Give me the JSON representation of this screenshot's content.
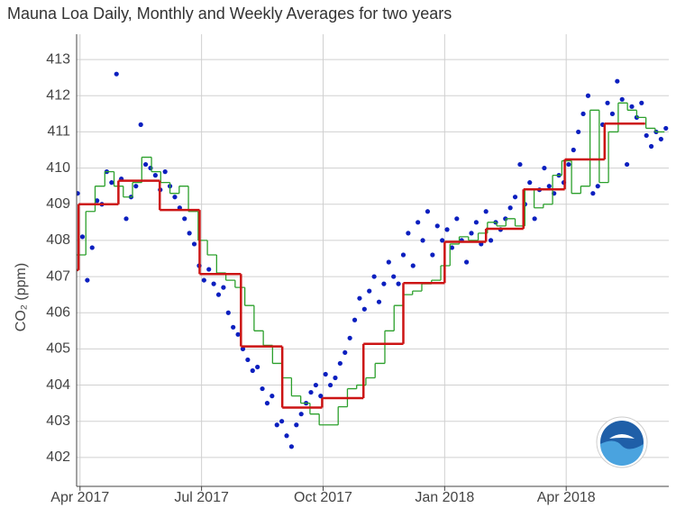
{
  "chart_data": {
    "type": "line",
    "title": "Mauna Loa Daily, Monthly and Weekly Averages for two years",
    "y_label": "CO₂ (ppm)",
    "xlim": [
      2017.243,
      2018.461
    ],
    "xticks": [
      {
        "value": 2017.25,
        "label": "Apr 2017"
      },
      {
        "value": 2017.5,
        "label": "Jul 2017"
      },
      {
        "value": 2017.75,
        "label": "Oct 2017"
      },
      {
        "value": 2018.0,
        "label": "Jan 2018"
      },
      {
        "value": 2018.25,
        "label": "Apr 2018"
      }
    ],
    "ylim": [
      401.2,
      413.7
    ],
    "yticks": [
      402,
      403,
      404,
      405,
      406,
      407,
      408,
      409,
      410,
      411,
      412,
      413
    ],
    "grid": true,
    "series": [
      {
        "type": "scatter",
        "color": "#0b1fbf",
        "x": [
          2017.245,
          2017.255,
          2017.265,
          2017.275,
          2017.285,
          2017.295,
          2017.305,
          2017.315,
          2017.325,
          2017.335,
          2017.345,
          2017.355,
          2017.365,
          2017.375,
          2017.385,
          2017.395,
          2017.405,
          2017.415,
          2017.425,
          2017.435,
          2017.445,
          2017.455,
          2017.465,
          2017.475,
          2017.485,
          2017.495,
          2017.505,
          2017.515,
          2017.525,
          2017.535,
          2017.545,
          2017.555,
          2017.565,
          2017.575,
          2017.585,
          2017.595,
          2017.605,
          2017.615,
          2017.625,
          2017.635,
          2017.645,
          2017.655,
          2017.665,
          2017.675,
          2017.685,
          2017.695,
          2017.705,
          2017.715,
          2017.725,
          2017.735,
          2017.745,
          2017.755,
          2017.765,
          2017.775,
          2017.785,
          2017.795,
          2017.805,
          2017.815,
          2017.825,
          2017.835,
          2017.845,
          2017.855,
          2017.865,
          2017.875,
          2017.885,
          2017.895,
          2017.905,
          2017.915,
          2017.925,
          2017.935,
          2017.945,
          2017.955,
          2017.965,
          2017.975,
          2017.985,
          2017.995,
          2018.005,
          2018.015,
          2018.025,
          2018.035,
          2018.045,
          2018.055,
          2018.065,
          2018.075,
          2018.085,
          2018.095,
          2018.105,
          2018.115,
          2018.125,
          2018.135,
          2018.145,
          2018.155,
          2018.165,
          2018.175,
          2018.185,
          2018.195,
          2018.205,
          2018.215,
          2018.225,
          2018.235,
          2018.245,
          2018.255,
          2018.265,
          2018.275,
          2018.285,
          2018.295,
          2018.305,
          2018.315,
          2018.325,
          2018.335,
          2018.345,
          2018.355,
          2018.365,
          2018.375,
          2018.385,
          2018.395,
          2018.405,
          2018.415,
          2018.425,
          2018.435,
          2018.445,
          2018.455
        ],
        "values": [
          409.3,
          408.1,
          406.9,
          407.8,
          409.1,
          409.0,
          409.9,
          409.6,
          412.6,
          409.7,
          408.6,
          409.2,
          409.5,
          411.2,
          410.1,
          410.0,
          409.8,
          409.4,
          409.9,
          409.5,
          409.2,
          408.9,
          408.6,
          408.2,
          407.9,
          407.3,
          406.9,
          407.2,
          406.8,
          406.5,
          406.7,
          406.0,
          405.6,
          405.4,
          405.0,
          404.7,
          404.4,
          404.5,
          403.9,
          403.5,
          403.7,
          402.9,
          403.0,
          402.6,
          402.3,
          402.9,
          403.2,
          403.5,
          403.8,
          404.0,
          403.7,
          404.3,
          404.0,
          404.2,
          404.6,
          404.9,
          405.3,
          405.8,
          406.4,
          406.1,
          406.6,
          407.0,
          406.3,
          406.8,
          407.4,
          407.0,
          406.8,
          407.6,
          408.2,
          407.3,
          408.5,
          408.0,
          408.8,
          407.6,
          408.4,
          408.0,
          408.3,
          407.8,
          408.6,
          408.0,
          407.4,
          408.2,
          408.5,
          407.9,
          408.8,
          408.0,
          408.5,
          408.3,
          408.6,
          408.9,
          409.2,
          410.1,
          409.0,
          409.6,
          408.6,
          409.4,
          410.0,
          409.5,
          409.3,
          409.8,
          409.6,
          410.1,
          410.5,
          411.0,
          411.5,
          412.0,
          409.3,
          409.5,
          411.2,
          411.8,
          411.5,
          412.4,
          411.9,
          410.1,
          411.7,
          411.4,
          411.8,
          410.9,
          410.6,
          411.0,
          410.8,
          411.1
        ]
      },
      {
        "type": "step",
        "color": "#2ca02c",
        "x": [
          2017.243,
          2017.262,
          2017.281,
          2017.301,
          2017.32,
          2017.339,
          2017.358,
          2017.377,
          2017.397,
          2017.416,
          2017.435,
          2017.454,
          2017.473,
          2017.493,
          2017.512,
          2017.531,
          2017.55,
          2017.569,
          2017.589,
          2017.608,
          2017.627,
          2017.646,
          2017.665,
          2017.685,
          2017.704,
          2017.723,
          2017.742,
          2017.761,
          2017.781,
          2017.8,
          2017.819,
          2017.838,
          2017.857,
          2017.877,
          2017.896,
          2017.915,
          2017.934,
          2017.953,
          2017.973,
          2017.992,
          2018.011,
          2018.03,
          2018.049,
          2018.069,
          2018.088,
          2018.107,
          2018.126,
          2018.145,
          2018.165,
          2018.184,
          2018.203,
          2018.222,
          2018.241,
          2018.261,
          2018.28,
          2018.299,
          2018.318,
          2018.337,
          2018.357,
          2018.376,
          2018.395,
          2018.414,
          2018.433
        ],
        "values": [
          407.6,
          408.8,
          409.5,
          409.9,
          409.5,
          409.2,
          409.6,
          410.3,
          409.9,
          409.6,
          409.3,
          409.5,
          408.8,
          408.0,
          407.6,
          407.1,
          406.9,
          406.7,
          406.2,
          405.5,
          405.1,
          404.6,
          404.2,
          403.7,
          403.5,
          403.2,
          402.9,
          402.9,
          403.4,
          403.9,
          404.0,
          404.2,
          404.6,
          405.5,
          406.2,
          406.5,
          406.6,
          406.8,
          406.9,
          407.3,
          407.9,
          408.1,
          408.0,
          408.2,
          408.5,
          408.4,
          408.6,
          408.4,
          409.4,
          408.9,
          409.0,
          409.8,
          410.2,
          409.3,
          409.5,
          411.6,
          409.6,
          411.0,
          411.8,
          411.6,
          411.4,
          411.1,
          411.0
        ]
      },
      {
        "type": "step",
        "color": "#cc1414",
        "x": [
          2017.162,
          2017.247,
          2017.329,
          2017.414,
          2017.496,
          2017.581,
          2017.666,
          2017.748,
          2017.833,
          2017.915,
          2018.0,
          2018.085,
          2018.162,
          2018.247,
          2018.329
        ],
        "values": [
          407.18,
          409.0,
          409.65,
          408.84,
          407.07,
          405.07,
          403.38,
          403.64,
          405.14,
          406.82,
          407.96,
          408.32,
          409.41,
          410.24,
          411.23
        ]
      }
    ]
  }
}
